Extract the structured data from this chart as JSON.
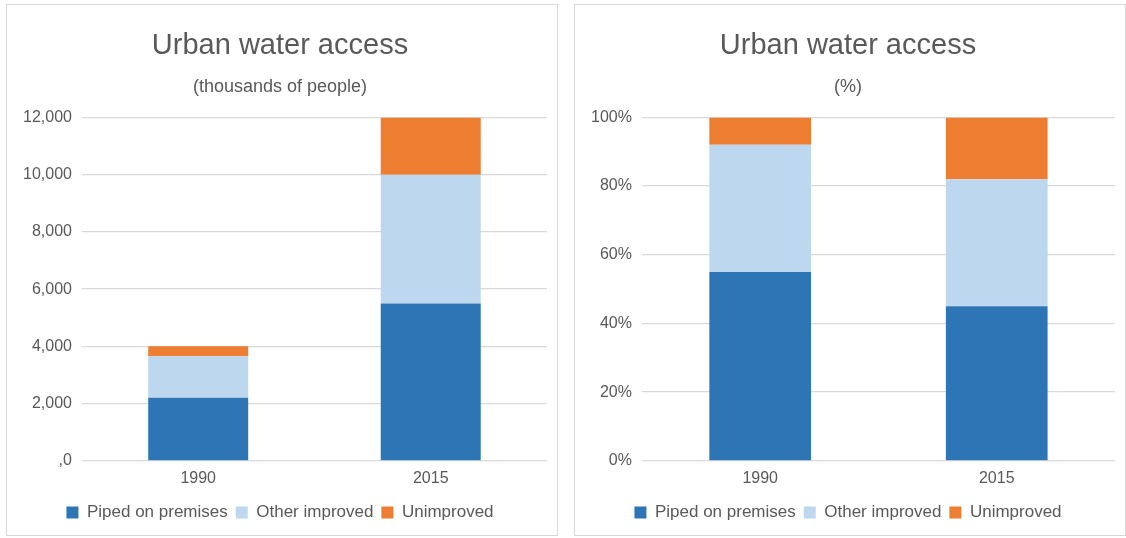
{
  "chart_data": [
    {
      "type": "bar",
      "title": "Urban water access",
      "subtitle": "(thousands of people)",
      "categories": [
        "1990",
        "2015"
      ],
      "stacked": true,
      "series": [
        {
          "name": "Piped on premises",
          "color": "#2e75b6",
          "values": [
            2200,
            5500
          ]
        },
        {
          "name": "Other improved",
          "color": "#bdd7ee",
          "values": [
            1450,
            4500
          ]
        },
        {
          "name": "Unimproved",
          "color": "#ed7d31",
          "values": [
            350,
            2000
          ]
        }
      ],
      "ylim": [
        0,
        12000
      ],
      "yticks": [
        {
          "value": 0,
          "label": ",0"
        },
        {
          "value": 2000,
          "label": "2,000"
        },
        {
          "value": 4000,
          "label": "4,000"
        },
        {
          "value": 6000,
          "label": "6,000"
        },
        {
          "value": 8000,
          "label": "8,000"
        },
        {
          "value": 10000,
          "label": "10,000"
        },
        {
          "value": 12000,
          "label": "12,000"
        }
      ],
      "grid": "y",
      "legend": "bottom"
    },
    {
      "type": "bar",
      "title": "Urban water access",
      "subtitle": "(%)",
      "categories": [
        "1990",
        "2015"
      ],
      "stacked": true,
      "series": [
        {
          "name": "Piped on premises",
          "color": "#2e75b6",
          "values": [
            55,
            45
          ]
        },
        {
          "name": "Other improved",
          "color": "#bdd7ee",
          "values": [
            37,
            37
          ]
        },
        {
          "name": "Unimproved",
          "color": "#ed7d31",
          "values": [
            8,
            18
          ]
        }
      ],
      "ylim": [
        0,
        100
      ],
      "yticks": [
        {
          "value": 0,
          "label": "0%"
        },
        {
          "value": 20,
          "label": "20%"
        },
        {
          "value": 40,
          "label": "40%"
        },
        {
          "value": 60,
          "label": "60%"
        },
        {
          "value": 80,
          "label": "80%"
        },
        {
          "value": 100,
          "label": "100%"
        }
      ],
      "grid": "y",
      "legend": "bottom"
    }
  ]
}
